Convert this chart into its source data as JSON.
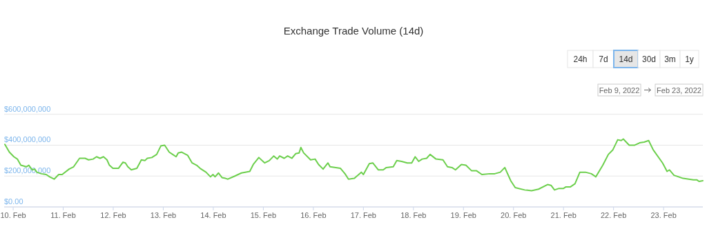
{
  "chart_data": {
    "type": "line",
    "title": "Exchange Trade Volume (14d)",
    "annotations": [
      "24h",
      "7d",
      "14d",
      "30d",
      "3m",
      "1y",
      "Feb 9, 2022",
      "Feb 23, 2022"
    ],
    "xlim": [
      "2022-02-09T19:40",
      "2022-02-23T18:50"
    ],
    "xticks": [
      {
        "value": "2022-02-10",
        "label": "10. Feb"
      },
      {
        "value": "2022-02-11",
        "label": "11. Feb"
      },
      {
        "value": "2022-02-12",
        "label": "12. Feb"
      },
      {
        "value": "2022-02-13",
        "label": "13. Feb"
      },
      {
        "value": "2022-02-14",
        "label": "14. Feb"
      },
      {
        "value": "2022-02-15",
        "label": "15. Feb"
      },
      {
        "value": "2022-02-16",
        "label": "16. Feb"
      },
      {
        "value": "2022-02-17",
        "label": "17. Feb"
      },
      {
        "value": "2022-02-18",
        "label": "18. Feb"
      },
      {
        "value": "2022-02-19",
        "label": "19. Feb"
      },
      {
        "value": "2022-02-20",
        "label": "20. Feb"
      },
      {
        "value": "2022-02-21",
        "label": "21. Feb"
      },
      {
        "value": "2022-02-22",
        "label": "22. Feb"
      },
      {
        "value": "2022-02-23",
        "label": "23. Feb"
      }
    ],
    "ylim": [
      0,
      600000000
    ],
    "yticks": [
      {
        "value": 0,
        "label": "$0.00"
      },
      {
        "value": 200000000,
        "label": "$200,000,000"
      },
      {
        "value": 400000000,
        "label": "$400,000,000"
      },
      {
        "value": 600000000,
        "label": "$600,000,000"
      }
    ],
    "grid": "y",
    "marker": "none",
    "line_style": "solid",
    "series": [
      {
        "color": "#6ccf4c",
        "x": [
          "2022-02-09T20:00",
          "2022-02-09T22:10",
          "2022-02-10T00:20",
          "2022-02-10T02:00",
          "2022-02-10T03:40",
          "2022-02-10T06:20",
          "2022-02-10T07:30",
          "2022-02-10T09:10",
          "2022-02-10T10:20",
          "2022-02-10T11:20",
          "2022-02-10T13:30",
          "2022-02-10T15:50",
          "2022-02-10T17:30",
          "2022-02-10T19:40",
          "2022-02-10T21:50",
          "2022-02-10T23:30",
          "2022-02-11T02:50",
          "2022-02-11T05:00",
          "2022-02-11T07:50",
          "2022-02-11T10:30",
          "2022-02-11T12:10",
          "2022-02-11T14:20",
          "2022-02-11T16:00",
          "2022-02-11T17:40",
          "2022-02-11T19:20",
          "2022-02-11T21:00",
          "2022-02-11T22:10",
          "2022-02-11T23:50",
          "2022-02-12T02:30",
          "2022-02-12T04:40",
          "2022-02-12T05:50",
          "2022-02-12T07:00",
          "2022-02-12T08:40",
          "2022-02-12T11:20",
          "2022-02-12T13:30",
          "2022-02-12T15:10",
          "2022-02-12T16:20",
          "2022-02-12T18:30",
          "2022-02-12T20:50",
          "2022-02-12T22:50",
          "2022-02-13T00:40",
          "2022-02-13T02:50",
          "2022-02-13T04:30",
          "2022-02-13T06:10",
          "2022-02-13T07:10",
          "2022-02-13T08:50",
          "2022-02-13T11:40",
          "2022-02-13T13:50",
          "2022-02-13T16:00",
          "2022-02-13T17:40",
          "2022-02-13T20:30",
          "2022-02-13T22:40",
          "2022-02-13T23:50",
          "2022-02-14T00:50",
          "2022-02-14T02:30",
          "2022-02-14T04:10",
          "2022-02-14T05:50",
          "2022-02-14T07:00",
          "2022-02-14T10:20",
          "2022-02-14T13:30",
          "2022-02-14T17:30",
          "2022-02-14T19:10",
          "2022-02-14T21:50",
          "2022-02-15T00:40",
          "2022-02-15T02:50",
          "2022-02-15T05:00",
          "2022-02-15T06:40",
          "2022-02-15T07:50",
          "2022-02-15T10:00",
          "2022-02-15T11:40",
          "2022-02-15T13:40",
          "2022-02-15T15:30",
          "2022-02-15T17:10",
          "2022-02-15T18:00",
          "2022-02-15T19:20",
          "2022-02-15T22:40",
          "2022-02-16T00:50",
          "2022-02-16T02:30",
          "2022-02-16T04:40",
          "2022-02-16T07:00",
          "2022-02-16T08:00",
          "2022-02-16T13:00",
          "2022-02-16T15:10",
          "2022-02-16T16:50",
          "2022-02-16T19:40",
          "2022-02-16T23:00",
          "2022-02-17T00:00",
          "2022-02-17T02:50",
          "2022-02-17T04:30",
          "2022-02-17T07:10",
          "2022-02-17T09:30",
          "2022-02-17T11:00",
          "2022-02-17T14:20",
          "2022-02-17T16:00",
          "2022-02-17T18:20",
          "2022-02-17T21:00",
          "2022-02-17T23:10",
          "2022-02-18T00:50",
          "2022-02-18T02:30",
          "2022-02-18T04:10",
          "2022-02-18T06:20",
          "2022-02-18T08:00",
          "2022-02-18T10:50",
          "2022-02-18T14:10",
          "2022-02-18T16:20",
          "2022-02-18T18:30",
          "2022-02-18T20:10",
          "2022-02-18T23:00",
          "2022-02-19T01:10",
          "2022-02-19T03:50",
          "2022-02-19T06:10",
          "2022-02-19T08:50",
          "2022-02-19T12:40",
          "2022-02-19T15:00",
          "2022-02-19T17:40",
          "2022-02-19T19:50",
          "2022-02-19T22:40",
          "2022-02-20T00:50",
          "2022-02-20T05:20",
          "2022-02-20T08:40",
          "2022-02-20T12:00",
          "2022-02-20T16:20",
          "2022-02-20T18:00",
          "2022-02-20T19:40",
          "2022-02-20T21:50",
          "2022-02-21T00:00",
          "2022-02-21T01:10",
          "2022-02-21T03:20",
          "2022-02-21T05:30",
          "2022-02-21T07:50",
          "2022-02-21T10:30",
          "2022-02-21T13:20",
          "2022-02-21T15:30",
          "2022-02-21T18:50",
          "2022-02-21T21:30",
          "2022-02-21T23:40",
          "2022-02-22T02:00",
          "2022-02-22T03:40",
          "2022-02-22T04:40",
          "2022-02-22T07:30",
          "2022-02-22T10:10",
          "2022-02-22T12:30",
          "2022-02-22T14:40",
          "2022-02-22T16:50",
          "2022-02-22T19:00",
          "2022-02-22T23:30",
          "2022-02-23T01:40",
          "2022-02-23T02:50",
          "2022-02-23T05:00",
          "2022-02-23T09:20",
          "2022-02-23T14:20",
          "2022-02-23T16:00",
          "2022-02-23T17:00",
          "2022-02-23T18:50"
        ],
        "values": [
          405000000,
          355000000,
          325000000,
          310000000,
          270000000,
          260000000,
          270000000,
          240000000,
          245000000,
          225000000,
          215000000,
          210000000,
          195000000,
          180000000,
          210000000,
          210000000,
          245000000,
          260000000,
          315000000,
          315000000,
          305000000,
          310000000,
          325000000,
          315000000,
          325000000,
          305000000,
          270000000,
          250000000,
          250000000,
          290000000,
          285000000,
          260000000,
          240000000,
          250000000,
          305000000,
          300000000,
          315000000,
          320000000,
          340000000,
          395000000,
          400000000,
          355000000,
          340000000,
          325000000,
          350000000,
          355000000,
          335000000,
          285000000,
          270000000,
          250000000,
          225000000,
          195000000,
          210000000,
          195000000,
          220000000,
          190000000,
          185000000,
          180000000,
          200000000,
          220000000,
          230000000,
          275000000,
          320000000,
          285000000,
          300000000,
          330000000,
          310000000,
          330000000,
          315000000,
          330000000,
          315000000,
          345000000,
          350000000,
          385000000,
          350000000,
          305000000,
          310000000,
          275000000,
          245000000,
          285000000,
          260000000,
          250000000,
          215000000,
          180000000,
          185000000,
          225000000,
          210000000,
          280000000,
          285000000,
          240000000,
          240000000,
          255000000,
          260000000,
          300000000,
          295000000,
          285000000,
          285000000,
          325000000,
          295000000,
          310000000,
          315000000,
          340000000,
          310000000,
          305000000,
          260000000,
          255000000,
          240000000,
          275000000,
          270000000,
          235000000,
          235000000,
          210000000,
          215000000,
          215000000,
          225000000,
          255000000,
          170000000,
          125000000,
          110000000,
          105000000,
          115000000,
          145000000,
          140000000,
          110000000,
          120000000,
          120000000,
          130000000,
          130000000,
          150000000,
          225000000,
          225000000,
          215000000,
          195000000,
          270000000,
          340000000,
          370000000,
          435000000,
          430000000,
          440000000,
          400000000,
          400000000,
          415000000,
          420000000,
          430000000,
          370000000,
          285000000,
          230000000,
          240000000,
          205000000,
          185000000,
          175000000,
          175000000,
          165000000,
          170000000
        ]
      }
    ]
  }
}
